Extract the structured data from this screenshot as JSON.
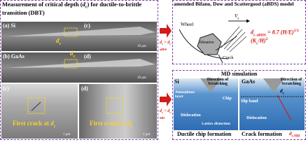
{
  "left_panel": {
    "title": [
      "Measurement of critical depth (",
      "d",
      "c",
      ") for ductile-to-brittle transition (DBT)"
    ],
    "images": [
      {
        "label": "(a) Si",
        "inset": "(c)",
        "dc": [
          "d",
          "c"
        ],
        "scale": "10 μm"
      },
      {
        "label": "(b) GaAs",
        "inset": "(d)",
        "dc": [
          "d",
          "c"
        ],
        "scale": "10 μm"
      },
      {
        "label": "(c)",
        "caption": [
          "First crack at ",
          "d",
          "c"
        ],
        "scale": "1 μm"
      },
      {
        "label": "(d)",
        "caption": [
          "First crack at ",
          "d",
          "c"
        ],
        "scale": "1 μm"
      }
    ]
  },
  "arrows": [
    [
      "d",
      "c",
      " > ",
      "d",
      "c-aBDS"
    ],
    [
      "d",
      "c",
      " > ",
      "d",
      "c-MD"
    ]
  ],
  "model_panel": {
    "title": "amended Bifano, Dow and Scattergood (aBDS) model",
    "wheel": "Wheel",
    "vs": [
      "V",
      "s"
    ],
    "abrasive": "Abrasive",
    "crack": "Crack",
    "formula": [
      "d",
      "c-aBDS",
      " = 8.7 (H/E)",
      "1/2",
      "(K",
      "c",
      "/H)",
      "2"
    ]
  },
  "md_panel": {
    "title": "MD simulation",
    "si": {
      "label": "Si",
      "direction": "Direction of Scratching",
      "amorphous": "Amorphous layer",
      "chip": "Chip",
      "dislocation": "Dislocation",
      "lattice": "Lattice distortion",
      "caption": "Ductile chip formation"
    },
    "gaas": {
      "label": "GaAs",
      "direction": "Direction of Scratching",
      "dc": [
        "d",
        "c"
      ],
      "slip": "Slip band",
      "dislocation": "Dislocation",
      "caption": "Crack formation",
      "dcmd": [
        "d",
        "c-MD"
      ]
    }
  }
}
